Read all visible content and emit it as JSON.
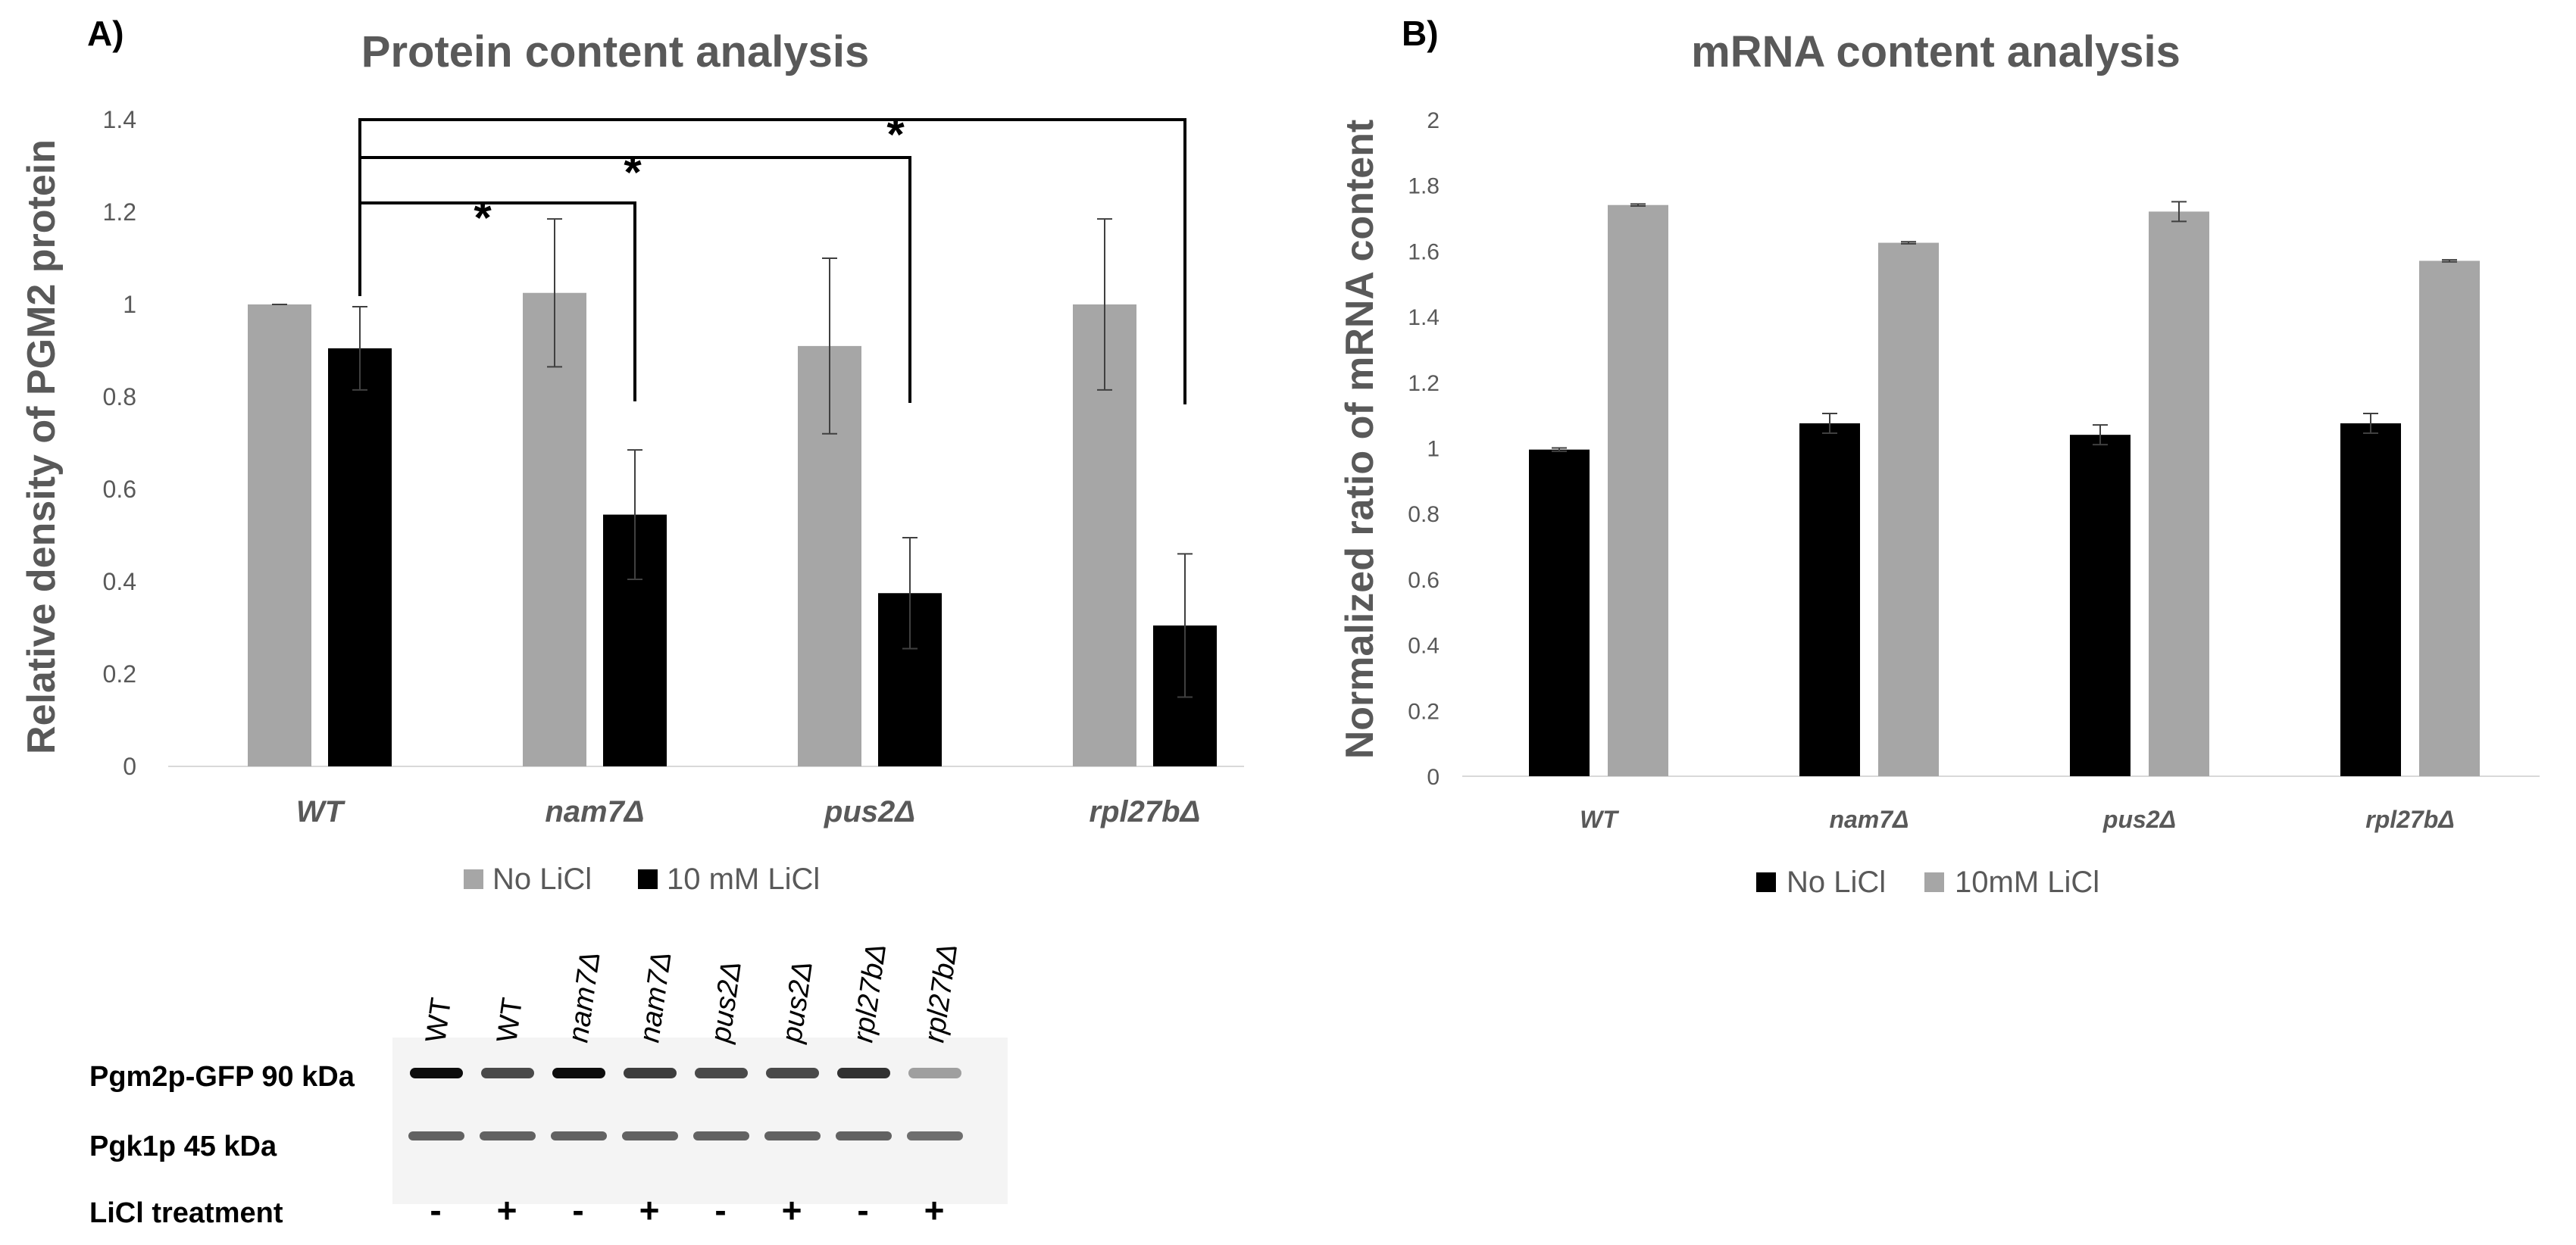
{
  "chart_data": [
    {
      "panel": "A)",
      "type": "bar",
      "title": "Protein content analysis",
      "ylabel": "Relative density of PGM2 protein",
      "xlabel": "",
      "ylim": [
        0,
        1.4
      ],
      "yticks": [
        "0",
        "0.2",
        "0.4",
        "0.6",
        "0.8",
        "1",
        "1.2",
        "1.4"
      ],
      "categories": [
        "WT",
        "nam7Δ",
        "pus2Δ",
        "rpl27bΔ"
      ],
      "series": [
        {
          "name": "No LiCl",
          "color": "#a6a6a6",
          "values": [
            1.0,
            1.025,
            0.91,
            1.0
          ],
          "errors": [
            0.0,
            0.16,
            0.19,
            0.185
          ]
        },
        {
          "name": "10 mM LiCl",
          "color": "#000000",
          "values": [
            0.905,
            0.545,
            0.375,
            0.305
          ],
          "errors": [
            0.09,
            0.14,
            0.12,
            0.155
          ]
        }
      ],
      "significance": [
        {
          "from": "WT",
          "to": "nam7Δ",
          "label": "*"
        },
        {
          "from": "WT",
          "to": "pus2Δ",
          "label": "*"
        },
        {
          "from": "WT",
          "to": "rpl27bΔ",
          "label": "*"
        }
      ],
      "legend_position": "bottom",
      "grid": false
    },
    {
      "panel": "B)",
      "type": "bar",
      "title": "mRNA content analysis",
      "ylabel": "Normalized ratio of mRNA content",
      "xlabel": "",
      "ylim": [
        0,
        2
      ],
      "yticks": [
        "0",
        "0.2",
        "0.4",
        "0.6",
        "0.8",
        "1",
        "1.2",
        "1.4",
        "1.6",
        "1.8",
        "2"
      ],
      "categories": [
        "WT",
        "nam7Δ",
        "pus2Δ",
        "rpl27bΔ"
      ],
      "series": [
        {
          "name": "No LiCl",
          "color": "#000000",
          "values": [
            0.995,
            1.075,
            1.04,
            1.075
          ],
          "errors": [
            0.005,
            0.03,
            0.03,
            0.03
          ]
        },
        {
          "name": "10mM LiCl",
          "color": "#a6a6a6",
          "values": [
            1.74,
            1.625,
            1.72,
            1.57
          ],
          "errors": [
            0.003,
            0.003,
            0.03,
            0.003
          ]
        }
      ],
      "legend_position": "bottom",
      "grid": false
    }
  ],
  "blot": {
    "lanes": [
      "WT",
      "WT",
      "nam7Δ",
      "nam7Δ",
      "pus2Δ",
      "pus2Δ",
      "rpl27bΔ",
      "rpl27bΔ"
    ],
    "lane_italic": [
      false,
      false,
      true,
      true,
      true,
      true,
      true,
      true
    ],
    "rows": [
      "Pgm2p-GFP 90 kDa",
      "Pgk1p 45 kDa"
    ],
    "treatment_label": "LiCl treatment",
    "treatment": [
      "-",
      "+",
      "-",
      "+",
      "-",
      "+",
      "-",
      "+"
    ],
    "pgm2_intensity": [
      0.95,
      0.7,
      0.95,
      0.75,
      0.7,
      0.7,
      0.8,
      0.35
    ],
    "pgk1_intensity": [
      0.6,
      0.6,
      0.6,
      0.6,
      0.6,
      0.6,
      0.6,
      0.55
    ]
  }
}
